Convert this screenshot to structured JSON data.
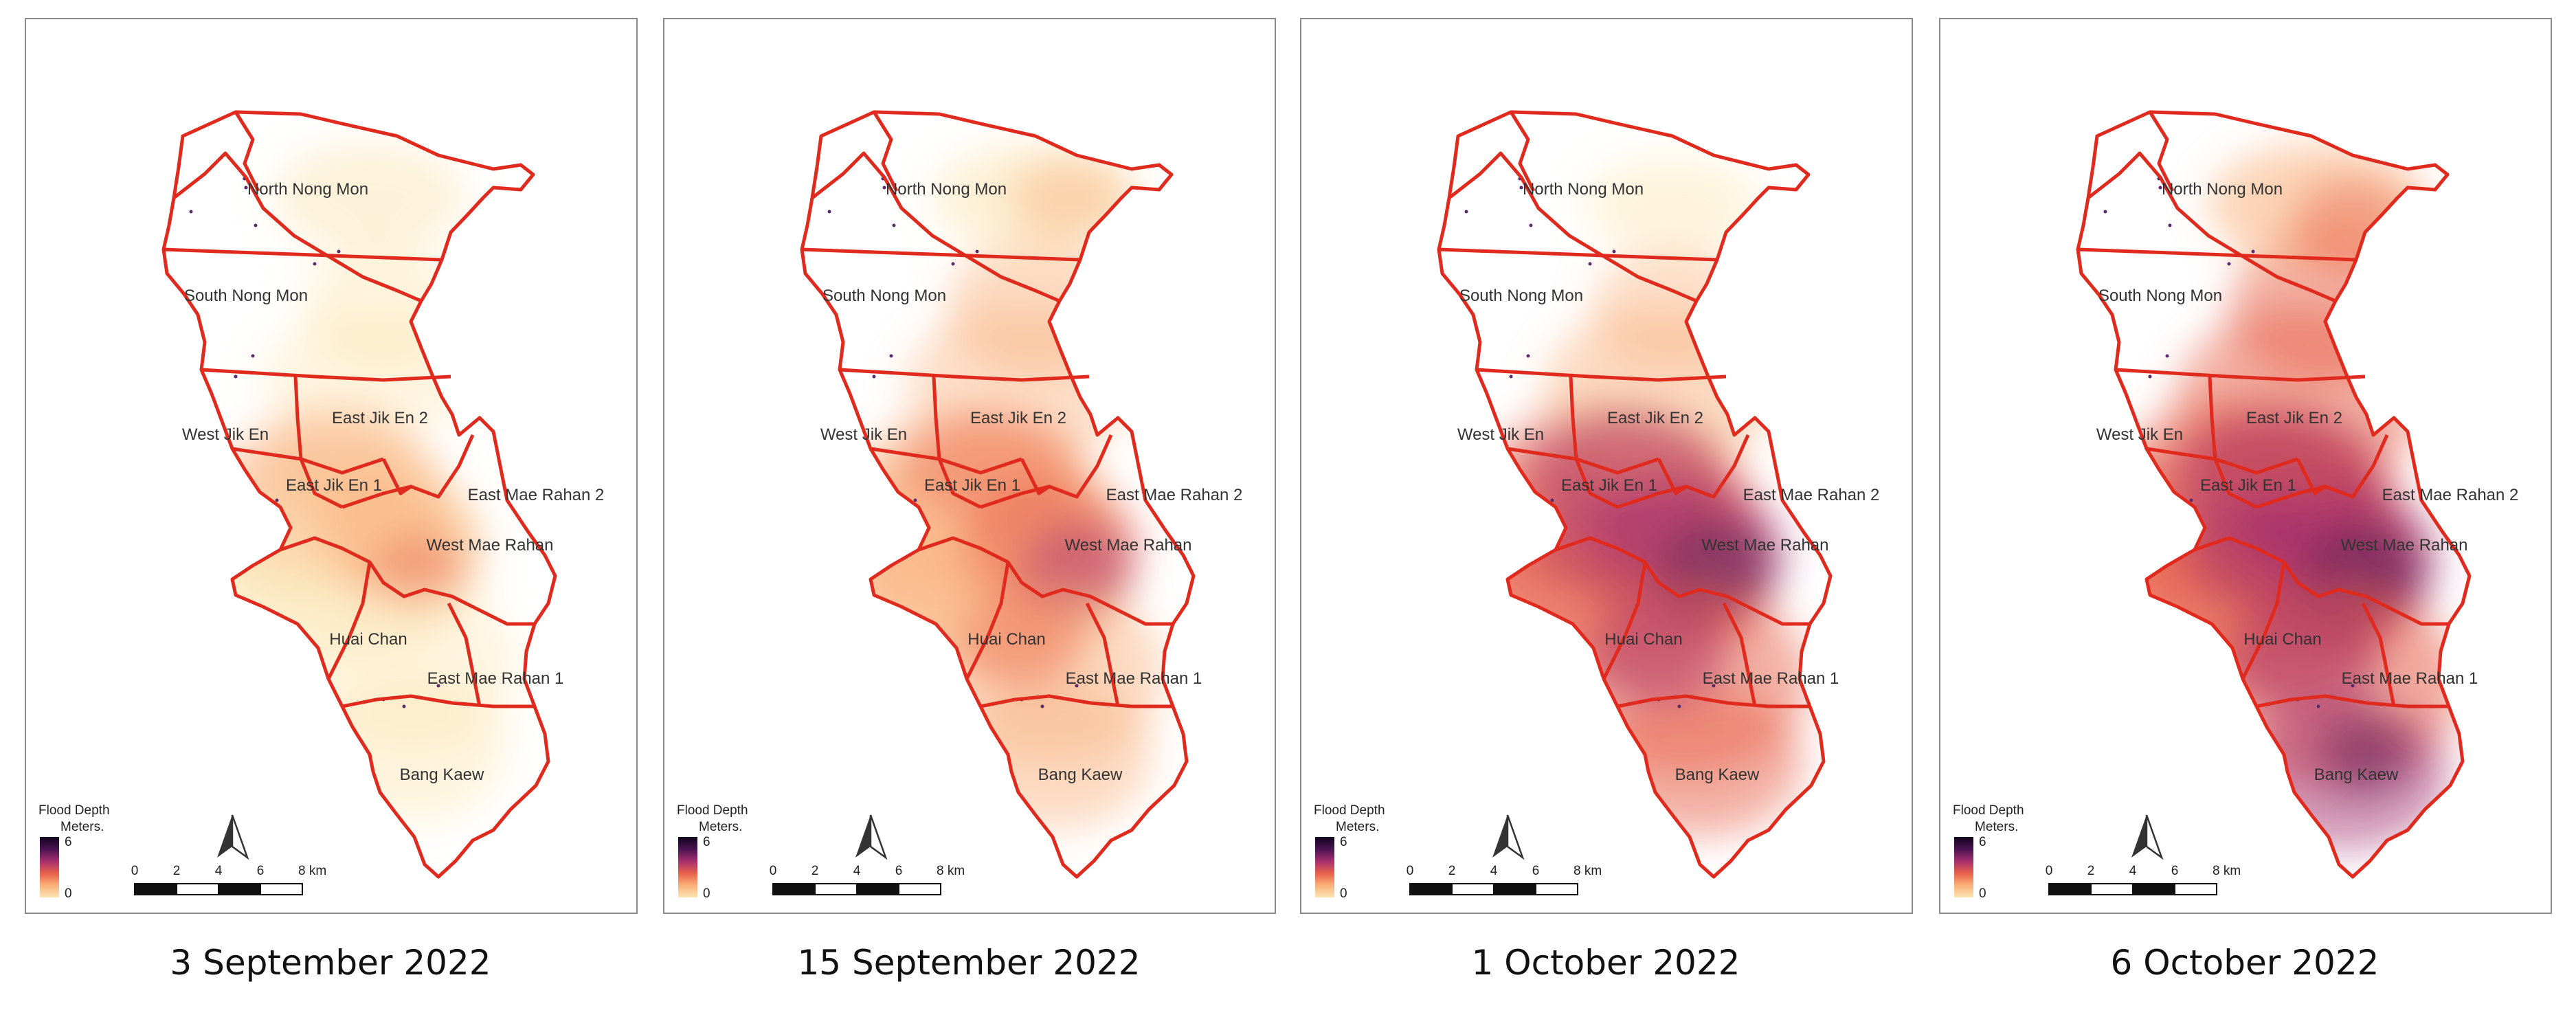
{
  "colors": {
    "boundary": "#e02a1e",
    "frame": "#8a8a8a",
    "ramp": [
      "#fce6b4",
      "#f9b07a",
      "#e8614a",
      "#a6306e",
      "#4a1251",
      "#12041e"
    ]
  },
  "legend": {
    "title": "Flood Depth",
    "unit": "Meters.",
    "max": "6",
    "min": "0"
  },
  "scale_bar": {
    "labels": [
      "0",
      "2",
      "4",
      "6",
      "8 km"
    ]
  },
  "north_arrow": {
    "icon": "north-arrow-icon"
  },
  "district_labels": {
    "north_nong_mon": "North Nong Mon",
    "south_nong_mon": "South Nong Mon",
    "west_jik_en": "West Jik En",
    "east_jik_en_2": "East Jik En 2",
    "east_jik_en_1": "East Jik En 1",
    "east_mae_rahan_2": "East Mae Rahan 2",
    "west_mae_rahan": "West Mae Rahan",
    "huai_chan": "Huai Chan",
    "east_mae_rahan_1": "East Mae Rahan 1",
    "bang_kaew": "Bang Kaew"
  },
  "panels": [
    {
      "date": "3 September 2022",
      "flood_level": 1
    },
    {
      "date": "15 September 2022",
      "flood_level": 2
    },
    {
      "date": "1 October 2022",
      "flood_level": 3
    },
    {
      "date": "6 October 2022",
      "flood_level": 4
    }
  ]
}
